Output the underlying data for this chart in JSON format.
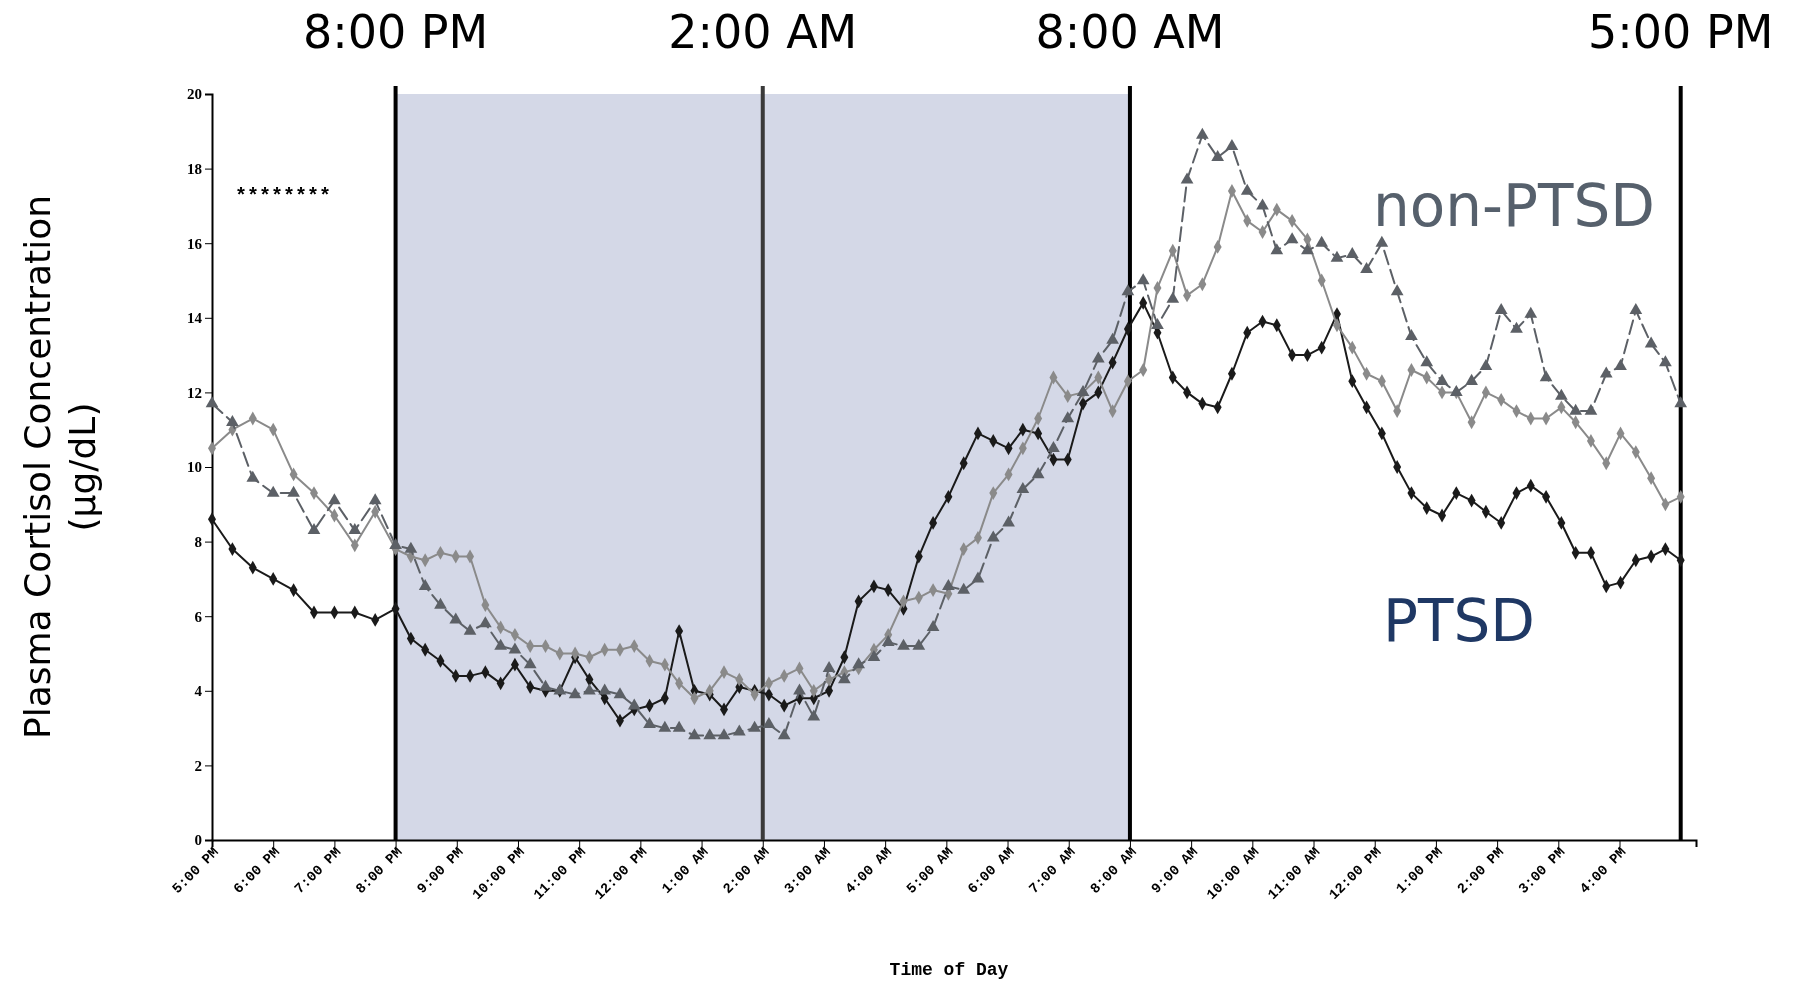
{
  "chart_data": {
    "type": "line",
    "xlabel": "Time of Day",
    "ylabel": "Plasma Cortisol Concentration (µg/dL)",
    "x": [
      "2000-01-01T17:00",
      "2000-01-01T17:20",
      "2000-01-01T17:40",
      "2000-01-01T18:00",
      "2000-01-01T18:20",
      "2000-01-01T18:40",
      "2000-01-01T19:00",
      "2000-01-01T19:20",
      "2000-01-01T19:40",
      "2000-01-01T20:00",
      "2000-01-01T20:15",
      "2000-01-01T20:29",
      "2000-01-01T20:44",
      "2000-01-01T20:59",
      "2000-01-01T21:13",
      "2000-01-01T21:28",
      "2000-01-01T21:43",
      "2000-01-01T21:57",
      "2000-01-01T22:12",
      "2000-01-01T22:27",
      "2000-01-01T22:41",
      "2000-01-01T22:56",
      "2000-01-01T23:10",
      "2000-01-01T23:25",
      "2000-01-01T23:40",
      "2000-01-01T23:54",
      "2000-01-02T00:09",
      "2000-01-02T00:24",
      "2000-01-02T00:38",
      "2000-01-02T00:53",
      "2000-01-02T01:08",
      "2000-01-02T01:22",
      "2000-01-02T01:37",
      "2000-01-02T01:52",
      "2000-01-02T02:06",
      "2000-01-02T02:21",
      "2000-01-02T02:36",
      "2000-01-02T02:50",
      "2000-01-02T03:05",
      "2000-01-02T03:20",
      "2000-01-02T03:34",
      "2000-01-02T03:49",
      "2000-01-02T04:03",
      "2000-01-02T04:18",
      "2000-01-02T04:33",
      "2000-01-02T04:47",
      "2000-01-02T05:02",
      "2000-01-02T05:17",
      "2000-01-02T05:31",
      "2000-01-02T05:46",
      "2000-01-02T06:01",
      "2000-01-02T06:15",
      "2000-01-02T06:30",
      "2000-01-02T06:45",
      "2000-01-02T06:59",
      "2000-01-02T07:14",
      "2000-01-02T07:29",
      "2000-01-02T07:43",
      "2000-01-02T07:58",
      "2000-01-02T08:13",
      "2000-01-02T08:27",
      "2000-01-02T08:42",
      "2000-01-02T08:56",
      "2000-01-02T09:11",
      "2000-01-02T09:26",
      "2000-01-02T09:40",
      "2000-01-02T09:55",
      "2000-01-02T10:10",
      "2000-01-02T10:24",
      "2000-01-02T10:39",
      "2000-01-02T10:54",
      "2000-01-02T11:08",
      "2000-01-02T11:23",
      "2000-01-02T11:38",
      "2000-01-02T11:52",
      "2000-01-02T12:07",
      "2000-01-02T12:22",
      "2000-01-02T12:36",
      "2000-01-02T12:51",
      "2000-01-02T13:06",
      "2000-01-02T13:20",
      "2000-01-02T13:35",
      "2000-01-02T13:49",
      "2000-01-02T14:04",
      "2000-01-02T14:19",
      "2000-01-02T14:33",
      "2000-01-02T14:48",
      "2000-01-02T15:03",
      "2000-01-02T15:17",
      "2000-01-02T15:32",
      "2000-01-02T15:47",
      "2000-01-02T16:01",
      "2000-01-02T16:16",
      "2000-01-02T16:31",
      "2000-01-02T16:45",
      "2000-01-02T17:00"
    ],
    "series": [
      {
        "color": "#1a1a1a",
        "marker": "diamond",
        "line_style": "solid",
        "values": [
          8.6,
          7.8,
          7.3,
          7.0,
          6.7,
          6.1,
          6.1,
          6.1,
          5.9,
          6.2,
          5.4,
          5.1,
          4.8,
          4.4,
          4.4,
          4.5,
          4.2,
          4.7,
          4.1,
          4.0,
          4.0,
          4.9,
          4.3,
          3.8,
          3.2,
          3.5,
          3.6,
          3.8,
          5.6,
          4.0,
          3.9,
          3.5,
          4.1,
          4.0,
          3.9,
          3.6,
          3.8,
          3.8,
          4.0,
          4.9,
          6.4,
          6.8,
          6.7,
          6.2,
          7.6,
          8.5,
          9.2,
          10.1,
          10.9,
          10.7,
          10.5,
          11.0,
          10.9,
          10.2,
          10.2,
          11.7,
          12.0,
          12.8,
          13.7,
          14.4,
          13.6,
          12.4,
          12.0,
          11.7,
          11.6,
          12.5,
          13.6,
          13.9,
          13.8,
          13.0,
          13.0,
          13.2,
          14.1,
          12.3,
          11.6,
          10.9,
          10.0,
          9.3,
          8.9,
          8.7,
          9.3,
          9.1,
          8.8,
          8.5,
          9.3,
          9.5,
          9.2,
          8.5,
          7.7,
          7.7,
          6.8,
          6.9,
          7.5,
          7.6,
          7.8,
          7.5
        ]
      },
      {
        "color": "#8a8a8a",
        "marker": "diamond",
        "line_style": "solid",
        "values": [
          10.5,
          11.0,
          11.3,
          11.0,
          9.8,
          9.3,
          8.7,
          7.9,
          8.8,
          7.8,
          7.6,
          7.5,
          7.7,
          7.6,
          7.6,
          6.3,
          5.7,
          5.5,
          5.2,
          5.2,
          5.0,
          5.0,
          4.9,
          5.1,
          5.1,
          5.2,
          4.8,
          4.7,
          4.2,
          3.8,
          4.0,
          4.5,
          4.3,
          3.9,
          4.2,
          4.4,
          4.6,
          4.0,
          4.3,
          4.5,
          4.6,
          5.1,
          5.5,
          6.4,
          6.5,
          6.7,
          6.6,
          7.8,
          8.1,
          9.3,
          9.8,
          10.5,
          11.3,
          12.4,
          11.9,
          12.0,
          12.4,
          11.5,
          12.3,
          12.6,
          14.8,
          15.8,
          14.6,
          14.9,
          15.9,
          17.4,
          16.6,
          16.3,
          16.9,
          16.6,
          16.1,
          15.0,
          13.8,
          13.2,
          12.5,
          12.3,
          11.5,
          12.6,
          12.4,
          12.0,
          12.0,
          11.2,
          12.0,
          11.8,
          11.5,
          11.3,
          11.3,
          11.6,
          11.2,
          10.7,
          10.1,
          10.9,
          10.4,
          9.7,
          9.0,
          9.2
        ]
      },
      {
        "color": "#5c6066",
        "marker": "triangle",
        "line_style": "dashed",
        "values": [
          11.7,
          11.2,
          9.7,
          9.3,
          9.3,
          8.3,
          9.1,
          8.3,
          9.1,
          7.9,
          7.8,
          6.8,
          6.3,
          5.9,
          5.6,
          5.8,
          5.2,
          5.1,
          4.7,
          4.1,
          4.0,
          3.9,
          4.0,
          4.0,
          3.9,
          3.6,
          3.1,
          3.0,
          3.0,
          2.8,
          2.8,
          2.8,
          2.9,
          3.0,
          3.1,
          2.8,
          4.0,
          3.3,
          4.6,
          4.3,
          4.7,
          4.9,
          5.3,
          5.2,
          5.2,
          5.7,
          6.8,
          6.7,
          7.0,
          8.1,
          8.5,
          9.4,
          9.8,
          10.5,
          11.3,
          12.0,
          12.9,
          13.4,
          14.7,
          15.0,
          13.8,
          14.5,
          17.7,
          18.9,
          18.3,
          18.6,
          17.4,
          17.0,
          15.8,
          16.1,
          15.8,
          16.0,
          15.6,
          15.7,
          15.3,
          16.0,
          14.7,
          13.5,
          12.8,
          12.3,
          12.0,
          12.3,
          12.7,
          14.2,
          13.7,
          14.1,
          12.4,
          11.9,
          11.5,
          11.5,
          12.5,
          12.7,
          14.2,
          13.3,
          12.8,
          11.7
        ]
      }
    ],
    "xlim": [
      "2000-01-01T17:00",
      "2000-01-02T17:15"
    ],
    "xticks": [
      {
        "value": "2000-01-01T17:00",
        "label": "5:00 PM"
      },
      {
        "value": "2000-01-01T18:00",
        "label": "6:00 PM"
      },
      {
        "value": "2000-01-01T19:00",
        "label": "7:00 PM"
      },
      {
        "value": "2000-01-01T20:00",
        "label": "8:00 PM"
      },
      {
        "value": "2000-01-01T21:00",
        "label": "9:00 PM"
      },
      {
        "value": "2000-01-01T22:00",
        "label": "10:00 PM"
      },
      {
        "value": "2000-01-01T23:00",
        "label": "11:00 PM"
      },
      {
        "value": "2000-01-02T00:00",
        "label": "12:00 PM"
      },
      {
        "value": "2000-01-02T01:00",
        "label": "1:00 AM"
      },
      {
        "value": "2000-01-02T02:00",
        "label": "2:00 AM"
      },
      {
        "value": "2000-01-02T03:00",
        "label": "3:00 AM"
      },
      {
        "value": "2000-01-02T04:00",
        "label": "4:00 AM"
      },
      {
        "value": "2000-01-02T05:00",
        "label": "5:00 AM"
      },
      {
        "value": "2000-01-02T06:00",
        "label": "6:00 AM"
      },
      {
        "value": "2000-01-02T07:00",
        "label": "7:00 AM"
      },
      {
        "value": "2000-01-02T08:00",
        "label": "8:00 AM"
      },
      {
        "value": "2000-01-02T09:00",
        "label": "9:00 AM"
      },
      {
        "value": "2000-01-02T10:00",
        "label": "10:00 AM"
      },
      {
        "value": "2000-01-02T11:00",
        "label": "11:00 AM"
      },
      {
        "value": "2000-01-02T12:00",
        "label": "12:00 PM"
      },
      {
        "value": "2000-01-02T13:00",
        "label": "1:00 PM"
      },
      {
        "value": "2000-01-02T14:00",
        "label": "2:00 PM"
      },
      {
        "value": "2000-01-02T15:00",
        "label": "3:00 PM"
      },
      {
        "value": "2000-01-02T16:00",
        "label": "4:00 PM"
      }
    ],
    "ylim": [
      0,
      20
    ],
    "yticks": [
      0,
      2,
      4,
      6,
      8,
      10,
      12,
      14,
      16,
      18,
      20
    ],
    "bands": [
      {
        "axis": "x",
        "from": "2000-01-01T20:00",
        "to": "2000-01-02T08:00",
        "color": "#d4d8e7"
      }
    ],
    "ref_lines": [
      {
        "axis": "x",
        "value": "2000-01-01T20:00",
        "label": "8:00 PM",
        "color": "#000000"
      },
      {
        "axis": "x",
        "value": "2000-01-02T02:00",
        "label": "2:00 AM",
        "color": "#3a3a3a"
      },
      {
        "axis": "x",
        "value": "2000-01-02T08:00",
        "label": "8:00 AM",
        "color": "#000000"
      },
      {
        "axis": "x",
        "value": "2000-01-02T17:00",
        "label": "5:00 PM",
        "color": "#000000"
      }
    ],
    "annotations": [
      "non-PTSD",
      "PTSD",
      "********"
    ],
    "grid": false
  }
}
